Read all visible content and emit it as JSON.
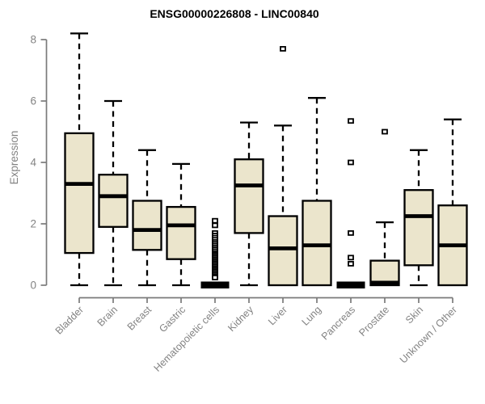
{
  "title": "ENSG00000226808 - LINC00840",
  "chart_data": {
    "type": "boxplot",
    "title": "ENSG00000226808 - LINC00840",
    "xlabel": "",
    "ylabel": "Expression",
    "ylim": [
      0,
      8
    ],
    "yticks": [
      0,
      2,
      4,
      6,
      8
    ],
    "grid": false,
    "legend": false,
    "categories": [
      "Bladder",
      "Brain",
      "Breast",
      "Gastric",
      "Hematopoietic cells",
      "Kidney",
      "Liver",
      "Lung",
      "Pancreas",
      "Prostate",
      "Skin",
      "Unknown / Other"
    ],
    "boxes": [
      {
        "name": "Bladder",
        "min": 0,
        "q1": 1.05,
        "median": 3.3,
        "q3": 4.95,
        "max": 8.2,
        "outliers": []
      },
      {
        "name": "Brain",
        "min": 0,
        "q1": 1.9,
        "median": 2.9,
        "q3": 3.6,
        "max": 6.0,
        "outliers": []
      },
      {
        "name": "Breast",
        "min": 0,
        "q1": 1.15,
        "median": 1.8,
        "q3": 2.75,
        "max": 4.4,
        "outliers": []
      },
      {
        "name": "Gastric",
        "min": 0,
        "q1": 0.85,
        "median": 1.95,
        "q3": 2.55,
        "max": 3.95,
        "outliers": []
      },
      {
        "name": "Hematopoietic cells",
        "min": 0,
        "q1": 0,
        "median": 0.02,
        "q3": 0.08,
        "max": 0.1,
        "outliers": [
          2.1,
          1.95,
          1.7,
          1.62,
          1.55,
          1.48,
          1.41,
          1.35,
          1.29,
          1.23,
          1.17,
          1.11,
          1.05,
          1.0,
          0.95,
          0.9,
          0.85,
          0.8,
          0.75,
          0.7,
          0.65,
          0.6,
          0.55,
          0.5,
          0.45,
          0.4,
          0.35,
          0.3,
          0.25
        ]
      },
      {
        "name": "Kidney",
        "min": 0,
        "q1": 1.7,
        "median": 3.25,
        "q3": 4.1,
        "max": 5.3,
        "outliers": []
      },
      {
        "name": "Liver",
        "min": 0,
        "q1": 0,
        "median": 1.2,
        "q3": 2.25,
        "max": 5.2,
        "outliers": [
          7.7
        ]
      },
      {
        "name": "Lung",
        "min": 0,
        "q1": 0,
        "median": 1.3,
        "q3": 2.75,
        "max": 6.1,
        "outliers": []
      },
      {
        "name": "Pancreas",
        "min": 0,
        "q1": 0,
        "median": 0.02,
        "q3": 0.08,
        "max": 0.1,
        "outliers": [
          5.35,
          4.0,
          1.7,
          0.9,
          0.7
        ]
      },
      {
        "name": "Prostate",
        "min": 0,
        "q1": 0,
        "median": 0.08,
        "q3": 0.8,
        "max": 2.05,
        "outliers": [
          5.0
        ]
      },
      {
        "name": "Skin",
        "min": 0,
        "q1": 0.65,
        "median": 2.25,
        "q3": 3.1,
        "max": 4.4,
        "outliers": []
      },
      {
        "name": "Unknown / Other",
        "min": 0,
        "q1": 0,
        "median": 1.3,
        "q3": 2.6,
        "max": 5.4,
        "outliers": []
      }
    ],
    "style": {
      "box_fill": "#EBE5CC",
      "box_stroke": "#000000",
      "whisker_color": "#000000",
      "axis_color": "#7a7a7a",
      "label_color": "#838383",
      "title_color": "#000000",
      "background": "#ffffff"
    }
  }
}
